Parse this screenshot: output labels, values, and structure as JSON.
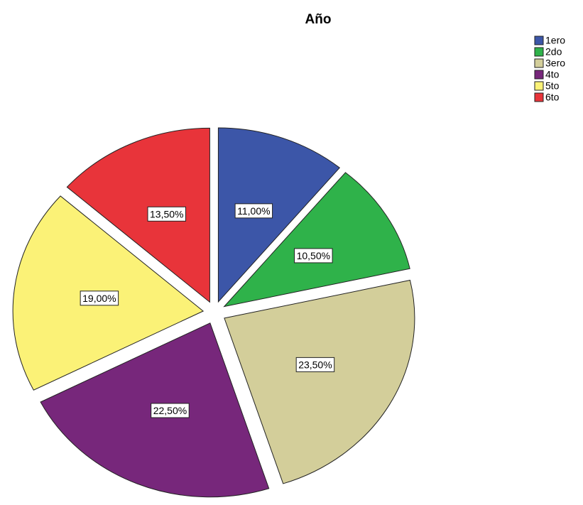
{
  "chart_data": {
    "type": "pie",
    "title": "Año",
    "categories": [
      "1ero",
      "2do",
      "3ero",
      "4to",
      "5to",
      "6to"
    ],
    "values": [
      11,
      10.5,
      23.5,
      22.5,
      19,
      13.5
    ],
    "value_labels": [
      "11,00%",
      "10,50%",
      "23,50%",
      "22,50%",
      "19,00%",
      "13,50%"
    ],
    "colors": [
      "#3c56a8",
      "#2fb24a",
      "#d3ce9a",
      "#77277b",
      "#fbf277",
      "#e8343a"
    ],
    "legend": "top-right"
  }
}
